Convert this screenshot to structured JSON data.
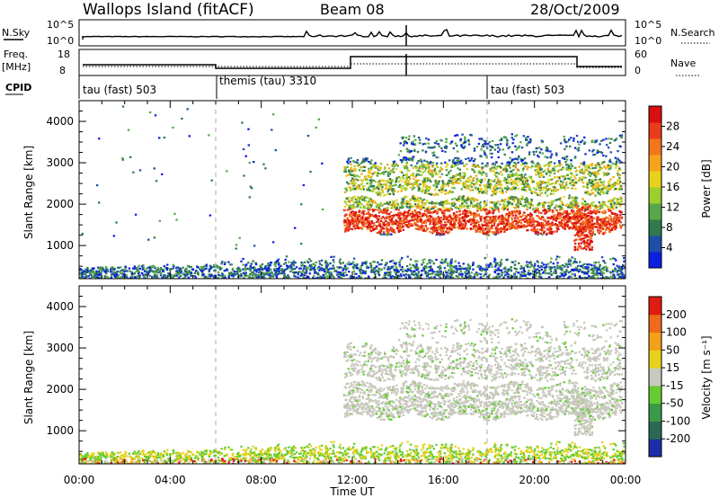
{
  "header": {
    "title": "Wallops Island (fitACF)",
    "beam": "Beam 08",
    "date": "28/Oct/2009"
  },
  "top_panels": {
    "nsky_label": "N.Sky",
    "nsky_ticks": [
      "10^5",
      "10^0"
    ],
    "nsearch_label": "N.Search",
    "nsearch_ticks": [
      "10^5",
      "10^0"
    ],
    "freq_label": "Freq.",
    "freq_unit": "[MHz]",
    "freq_ticks": [
      "18",
      "8"
    ],
    "nave_label": "Nave",
    "nave_ticks": [
      "60",
      "0"
    ],
    "cpid_label": "CPID",
    "cpid_segments": [
      "tau (fast) 503",
      "themis (tau) 3310",
      "tau (fast) 503"
    ]
  },
  "chart_data": [
    {
      "type": "heatmap",
      "name": "power",
      "ylabel": "Slant Range [km]",
      "yticks": [
        1000,
        2000,
        3000,
        4000
      ],
      "ylim": [
        200,
        4500
      ],
      "colorbar_label": "Power [dB]",
      "colorbar_ticks": [
        4,
        8,
        12,
        16,
        20,
        24,
        28
      ],
      "colorbar_colors": [
        "#0b1fe0",
        "#1c4fa8",
        "#2f7a4c",
        "#56a84a",
        "#9ccf2e",
        "#e6d21c",
        "#f6a51a",
        "#f2761c",
        "#ea3b1c",
        "#d90f10"
      ]
    },
    {
      "type": "heatmap",
      "name": "velocity",
      "ylabel": "Slant Range [km]",
      "yticks": [
        1000,
        2000,
        3000,
        4000
      ],
      "ylim": [
        200,
        4500
      ],
      "colorbar_label": "Velocity [m s⁻¹]",
      "colorbar_ticks": [
        200,
        100,
        50,
        15,
        -15,
        -50,
        -100,
        -200
      ],
      "colorbar_colors": [
        "#1a2ea8",
        "#2a6a55",
        "#3a9a4a",
        "#66cc33",
        "#c8c8be",
        "#e6d21c",
        "#f4a11a",
        "#f06a1c",
        "#e01b10"
      ]
    }
  ],
  "xaxis": {
    "label": "Time UT",
    "ticks": [
      "00:00",
      "04:00",
      "08:00",
      "12:00",
      "16:00",
      "20:00",
      "00:00"
    ]
  }
}
